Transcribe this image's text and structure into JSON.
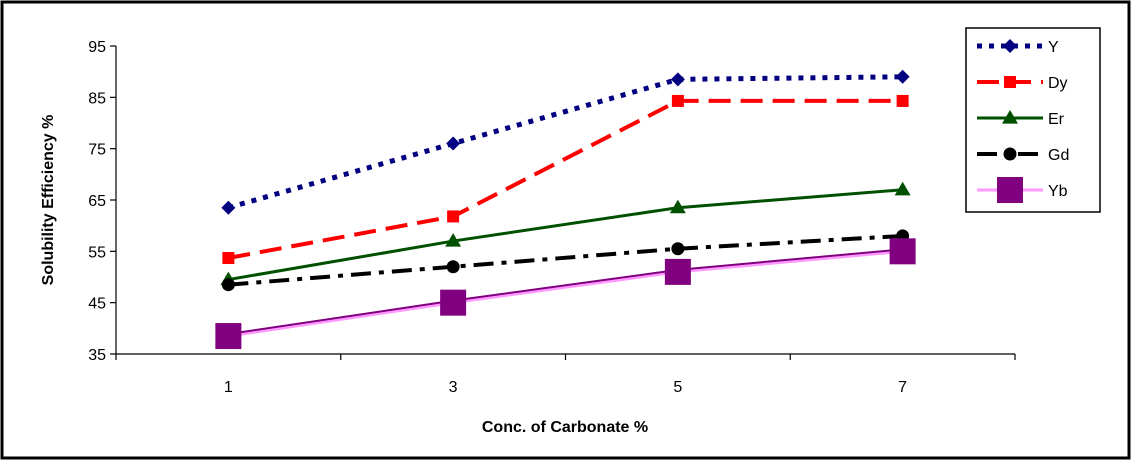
{
  "chart_data": {
    "type": "line",
    "title": "",
    "xlabel": "Conc. of Carbonate %",
    "ylabel": "Solubility Efficiency %",
    "categories": [
      "1",
      "3",
      "5",
      "7"
    ],
    "ylim": [
      35,
      95
    ],
    "yticks": [
      "35",
      "45",
      "55",
      "65",
      "75",
      "85",
      "95"
    ],
    "grid": false,
    "legend_position": "right",
    "series": [
      {
        "name": "Y",
        "values": [
          63.5,
          76,
          88.5,
          89
        ],
        "color": "#000080",
        "marker": "diamond",
        "dash": "dot"
      },
      {
        "name": "Dy",
        "values": [
          53.7,
          61.8,
          84.3,
          84.3
        ],
        "color": "#ff0000",
        "marker": "square",
        "dash": "long-dash"
      },
      {
        "name": "Er",
        "values": [
          49.5,
          57,
          63.5,
          67
        ],
        "color": "#005000",
        "marker": "triangle",
        "dash": "solid"
      },
      {
        "name": "Gd",
        "values": [
          48.5,
          52,
          55.5,
          58
        ],
        "color": "#000000",
        "marker": "circle",
        "dash": "dash-dot"
      },
      {
        "name": "Yb",
        "values": [
          38.5,
          45,
          51,
          55
        ],
        "color": "#800080",
        "marker": "big-square",
        "dash": "solid"
      }
    ]
  }
}
